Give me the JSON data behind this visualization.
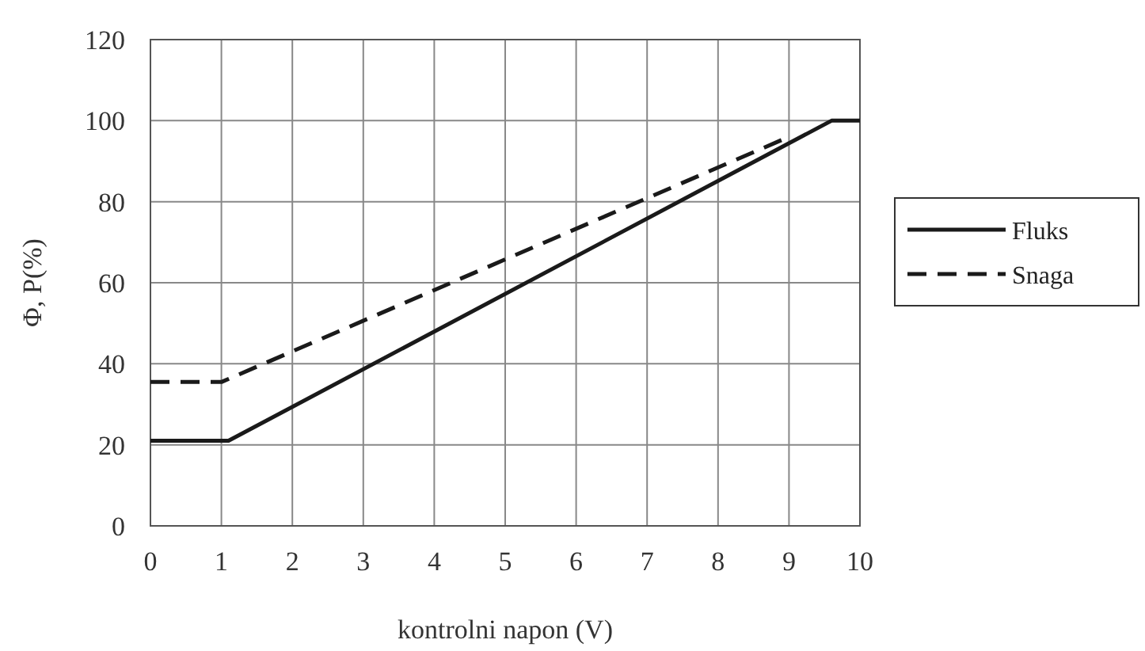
{
  "chart_data": {
    "type": "line",
    "xlabel": "kontrolni napon (V)",
    "ylabel": "Φ, P(%)",
    "xlim": [
      0,
      10
    ],
    "xticks": [
      0,
      1,
      2,
      3,
      4,
      5,
      6,
      7,
      8,
      9,
      10
    ],
    "ylim": [
      0,
      120
    ],
    "yticks": [
      0,
      20,
      40,
      60,
      80,
      100,
      120
    ],
    "grid": true,
    "legend": "right",
    "marker": "none",
    "series": [
      {
        "name": "Fluks",
        "color": "#1a1a1a",
        "x": [
          0,
          1.1,
          9.6,
          10
        ],
        "values": [
          21,
          21,
          100,
          100
        ],
        "line_style": "solid"
      },
      {
        "name": "Snaga",
        "color": "#1a1a1a",
        "x": [
          0,
          1,
          9
        ],
        "values": [
          35.5,
          35.5,
          96
        ],
        "line_style": "dashed"
      }
    ]
  }
}
